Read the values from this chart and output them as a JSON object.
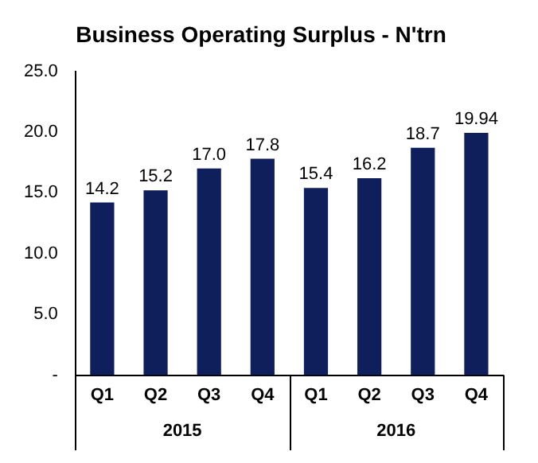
{
  "chart_data": {
    "type": "bar",
    "title": "Business Operating Surplus - N'trn",
    "categories": [
      "Q1",
      "Q2",
      "Q3",
      "Q4",
      "Q1",
      "Q2",
      "Q3",
      "Q4"
    ],
    "values": [
      14.2,
      15.2,
      17.0,
      17.8,
      15.4,
      16.2,
      18.7,
      19.94
    ],
    "value_labels": [
      "14.2",
      "15.2",
      "17.0",
      "17.8",
      "15.4",
      "16.2",
      "18.7",
      "19.94"
    ],
    "color": "#0f1f5c",
    "ylim": [
      0,
      25
    ],
    "yticks": [
      {
        "value": 0,
        "label": "-"
      },
      {
        "value": 5,
        "label": "5.0"
      },
      {
        "value": 10,
        "label": "10.0"
      },
      {
        "value": 15,
        "label": "15.0"
      },
      {
        "value": 20,
        "label": "20.0"
      },
      {
        "value": 25,
        "label": "25.0"
      }
    ],
    "grid": false,
    "legend": false,
    "annotations": [
      "2015",
      "2016"
    ]
  }
}
